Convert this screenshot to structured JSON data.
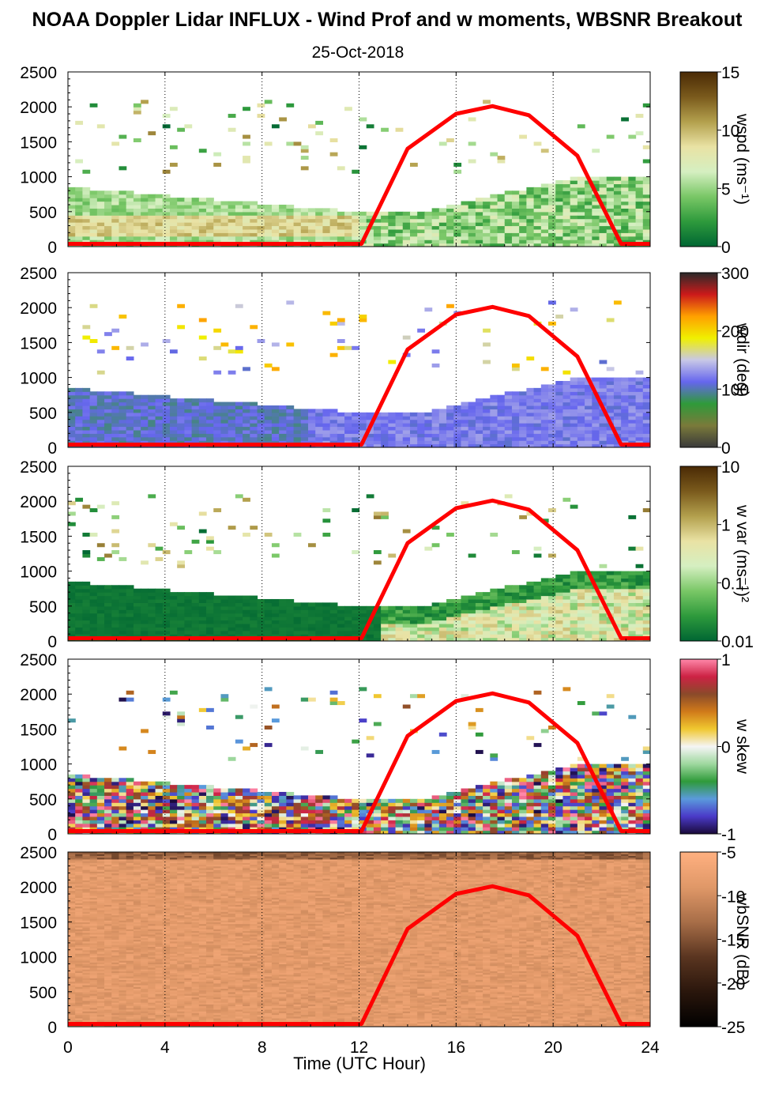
{
  "title": "NOAA Doppler Lidar INFLUX - Wind Prof and w moments, WBSNR Breakout",
  "subtitle": "25-Oct-2018",
  "xlabel": "Time (UTC Hour)",
  "chart_data": {
    "type": "heatmap",
    "x_range": [
      0,
      24
    ],
    "x_ticks": [
      0,
      4,
      8,
      12,
      16,
      20,
      24
    ],
    "y_range": [
      0,
      2500
    ],
    "y_ticks": [
      0,
      500,
      1000,
      1500,
      2000,
      2500
    ],
    "vertical_gridlines_dotted": [
      4,
      8,
      12,
      16,
      20,
      24
    ],
    "overlay_curve": {
      "color": "#ff0000",
      "description_points": [
        [
          0,
          40
        ],
        [
          12.1,
          40
        ],
        [
          14,
          1400
        ],
        [
          16,
          1900
        ],
        [
          17.5,
          2010
        ],
        [
          19,
          1880
        ],
        [
          21,
          1300
        ],
        [
          22.8,
          40
        ],
        [
          24,
          40
        ]
      ]
    },
    "panels": [
      {
        "colorbar_label": "wspd (ms⁻¹)",
        "colorbar_ticks": [
          "15",
          "10",
          "5",
          "0"
        ],
        "colorbar_range": [
          0,
          15
        ],
        "colormap": [
          "#006633",
          "#2e9a3c",
          "#79c766",
          "#d5efc1",
          "#e9e2a4",
          "#b3a04d",
          "#7a5a1c",
          "#4a2a05"
        ]
      },
      {
        "colorbar_label": "wdir (deg)",
        "colorbar_ticks": [
          "300",
          "200",
          "100",
          "0"
        ],
        "colorbar_range": [
          0,
          360
        ],
        "colormap": [
          "#3a3a3a",
          "#7a7a3a",
          "#2f9a3a",
          "#6666ee",
          "#c8c8e6",
          "#f0f000",
          "#ffa000",
          "#cc1a1a",
          "#2a2a2a"
        ]
      },
      {
        "colorbar_label": "w var (ms⁻¹)²",
        "colorbar_ticks": [
          "10",
          "1",
          "0.1",
          "0.01"
        ],
        "colorbar_range": [
          0.01,
          10
        ],
        "colorbar_scale": "log",
        "colormap": [
          "#006633",
          "#2e9a3c",
          "#79c766",
          "#d5efc1",
          "#e9e2a4",
          "#b3a04d",
          "#7a5a1c",
          "#4a2a05"
        ]
      },
      {
        "colorbar_label": "w skew",
        "colorbar_ticks": [
          "1",
          "0",
          "-1"
        ],
        "colorbar_range": [
          -1,
          1
        ],
        "colormap": [
          "#1a0a3a",
          "#4a3ac8",
          "#5a9adc",
          "#2f9a3a",
          "#9fd89f",
          "#f5f5f5",
          "#f0c830",
          "#d07a1a",
          "#8a4a2a",
          "#cc2244",
          "#ff88aa"
        ]
      },
      {
        "colorbar_label": "wbSNR (dB)",
        "colorbar_ticks": [
          "-5",
          "-10",
          "-15",
          "-20",
          "-25"
        ],
        "colorbar_range": [
          -25,
          -5
        ],
        "colormap": [
          "#000000",
          "#2a160c",
          "#5a3520",
          "#a86e48",
          "#e09868",
          "#ffb080"
        ]
      }
    ]
  }
}
